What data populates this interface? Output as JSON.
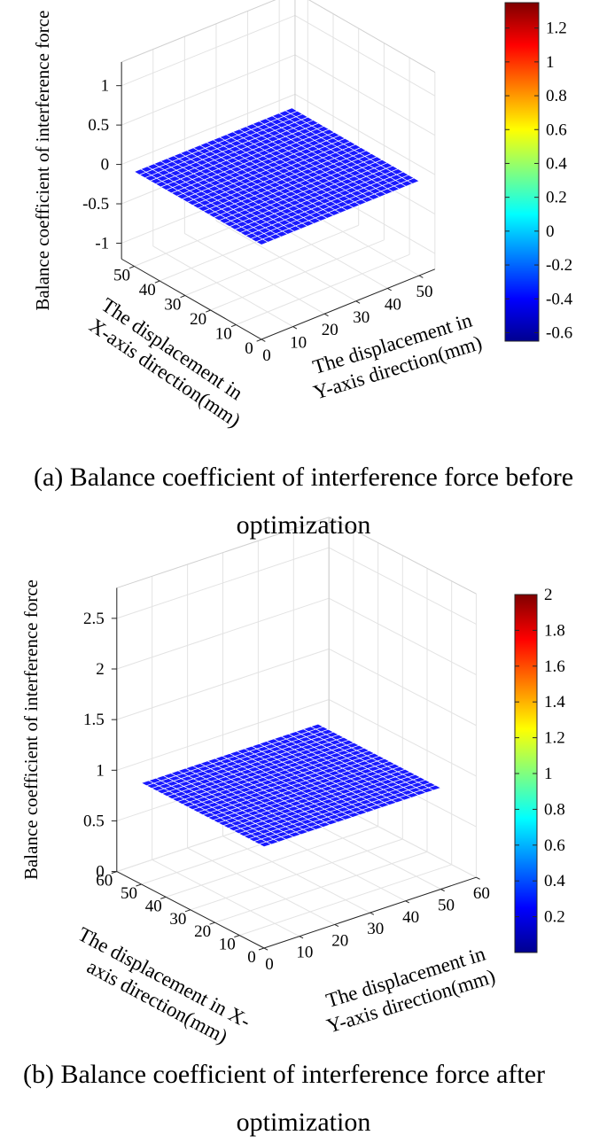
{
  "chart_data": [
    {
      "type": "surface",
      "caption_line1": "(a) Balance coefficient of interference force before",
      "caption_line2": "optimization",
      "zlabel": "Balance coefficient of interference force",
      "xlabel_line1": "The displacement in",
      "xlabel_line2": "X-axis direction(mm)",
      "ylabel_line1": "The displacement in",
      "ylabel_line2": "Y-axis direction(mm)",
      "x_ticks": [
        "0",
        "10",
        "20",
        "30",
        "40",
        "50"
      ],
      "y_ticks": [
        "0",
        "10",
        "20",
        "30",
        "40",
        "50"
      ],
      "z_ticks": [
        "-1",
        "-0.5",
        "0",
        "0.5",
        "1"
      ],
      "xlim": [
        0,
        55
      ],
      "ylim": [
        0,
        55
      ],
      "zlim": [
        -1.2,
        1.3
      ],
      "surface": {
        "z": 0,
        "x_range": [
          0,
          50
        ],
        "y_range": [
          0,
          50
        ],
        "grid": 24,
        "face_color": "#1a1aff",
        "edge_color": "#ffffff"
      },
      "colorbar": {
        "min": -0.65,
        "max": 1.35,
        "ticks": [
          "-0.6",
          "-0.4",
          "-0.2",
          "0",
          "0.2",
          "0.4",
          "0.6",
          "0.8",
          "1",
          "1.2"
        ],
        "colormap": "jet"
      },
      "grid": true
    },
    {
      "type": "surface",
      "caption_line1": "(b) Balance coefficient of interference force after",
      "caption_line2": "optimization",
      "zlabel": "Balance coefficient of interference force",
      "xlabel_line1": "The displacement in X-",
      "xlabel_line2": "axis direction(mm)",
      "ylabel_line1": "The displacement in",
      "ylabel_line2": "Y-axis direction(mm)",
      "x_ticks": [
        "0",
        "10",
        "20",
        "30",
        "40",
        "50",
        "60"
      ],
      "y_ticks": [
        "0",
        "10",
        "20",
        "30",
        "40",
        "50",
        "60"
      ],
      "z_ticks": [
        "0",
        "0.5",
        "1",
        "1.5",
        "2",
        "2.5"
      ],
      "xlim": [
        0,
        60
      ],
      "ylim": [
        0,
        60
      ],
      "zlim": [
        0,
        2.8
      ],
      "surface": {
        "z": 1,
        "x_range": [
          0,
          50
        ],
        "y_range": [
          0,
          50
        ],
        "grid": 24,
        "face_color": "#1a1aff",
        "edge_color": "#ffffff"
      },
      "colorbar": {
        "min": 0,
        "max": 2,
        "ticks": [
          "0.2",
          "0.4",
          "0.6",
          "0.8",
          "1",
          "1.2",
          "1.4",
          "1.6",
          "1.8",
          "2"
        ],
        "colormap": "jet"
      },
      "grid": true
    }
  ]
}
